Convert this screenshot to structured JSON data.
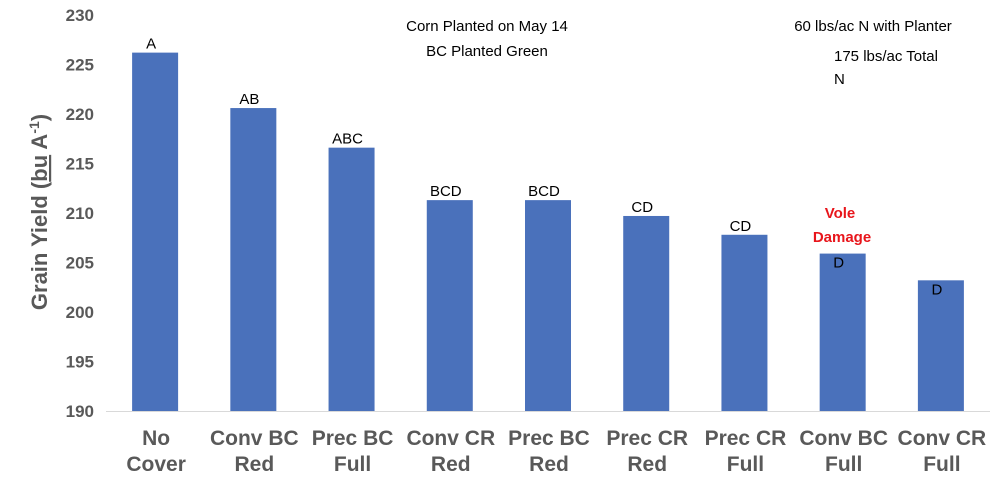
{
  "colors": {
    "bar": "#4a71bb",
    "axis_text": "#595959",
    "annotation": "#e8151b"
  },
  "chart_data": {
    "type": "bar",
    "ylabel": "Grain Yield (bu A-1)",
    "ylim": [
      190,
      230
    ],
    "y_ticks": [
      "190",
      "195",
      "200",
      "205",
      "210",
      "215",
      "220",
      "225",
      "230"
    ],
    "grid": false,
    "categories": [
      [
        "No",
        "Cover"
      ],
      [
        "Conv BC",
        "Red"
      ],
      [
        "Prec BC",
        "Full"
      ],
      [
        "Conv CR",
        "Red"
      ],
      [
        "Prec BC",
        "Red"
      ],
      [
        "Prec CR",
        "Red"
      ],
      [
        "Prec CR",
        "Full"
      ],
      [
        "Conv BC",
        "Full"
      ],
      [
        "Conv CR",
        "Full"
      ]
    ],
    "values": [
      226.2,
      220.6,
      216.6,
      211.3,
      211.3,
      209.7,
      207.8,
      205.9,
      203.2
    ],
    "data_labels": [
      "A",
      "AB",
      "ABC",
      "BCD",
      "BCD",
      "CD",
      "CD",
      "D",
      "D"
    ],
    "notes": {
      "planting_line1": "Corn Planted on May 14",
      "planting_line2": "BC Planted Green",
      "n_planter": "60 lbs/ac N with Planter",
      "n_total_line1": "175 lbs/ac Total",
      "n_total_line2": "N",
      "vole_line1": "Vole",
      "vole_line2": "Damage"
    }
  }
}
